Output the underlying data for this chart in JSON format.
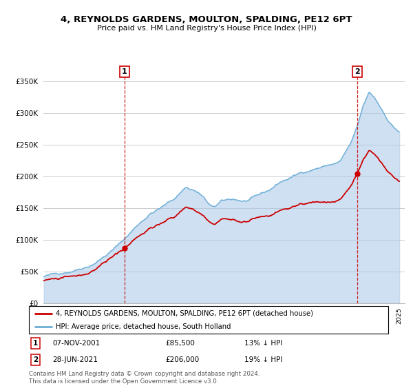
{
  "title": "4, REYNOLDS GARDENS, MOULTON, SPALDING, PE12 6PT",
  "subtitle": "Price paid vs. HM Land Registry's House Price Index (HPI)",
  "sale1_date": "07-NOV-2001",
  "sale1_price": 85500,
  "sale1_label": "13% ↓ HPI",
  "sale2_date": "28-JUN-2021",
  "sale2_price": 206000,
  "sale2_label": "19% ↓ HPI",
  "legend_line1": "4, REYNOLDS GARDENS, MOULTON, SPALDING, PE12 6PT (detached house)",
  "legend_line2": "HPI: Average price, detached house, South Holland",
  "footer": "Contains HM Land Registry data © Crown copyright and database right 2024.\nThis data is licensed under the Open Government Licence v3.0.",
  "hpi_color": "#a8c8e8",
  "hpi_line_color": "#6baed6",
  "price_color": "#cc0000",
  "vline_color": "#cc0000",
  "background_color": "#ffffff",
  "grid_color": "#cccccc",
  "ylim": [
    0,
    375000
  ],
  "yticks": [
    0,
    50000,
    100000,
    150000,
    200000,
    250000,
    300000,
    350000
  ],
  "hpi_anchors_t": [
    1995.0,
    1996.0,
    1997.0,
    1998.0,
    1999.0,
    2000.0,
    2001.0,
    2002.0,
    2003.0,
    2004.0,
    2005.0,
    2006.0,
    2007.0,
    2007.8,
    2008.5,
    2009.0,
    2009.5,
    2010.0,
    2011.0,
    2012.0,
    2013.0,
    2014.0,
    2015.0,
    2016.0,
    2017.0,
    2018.0,
    2019.0,
    2020.0,
    2021.0,
    2021.5,
    2022.0,
    2022.5,
    2023.0,
    2023.5,
    2024.0,
    2024.5,
    2025.0
  ],
  "hpi_anchors_v": [
    42000,
    45000,
    50000,
    57000,
    65000,
    78000,
    92000,
    110000,
    130000,
    148000,
    158000,
    170000,
    190000,
    185000,
    175000,
    160000,
    158000,
    165000,
    168000,
    165000,
    170000,
    178000,
    192000,
    200000,
    208000,
    215000,
    220000,
    225000,
    255000,
    278000,
    310000,
    330000,
    320000,
    305000,
    290000,
    278000,
    270000
  ],
  "sale1_t": 2001.856,
  "sale2_t": 2021.497,
  "noise_seed_hpi": 42,
  "noise_seed_price": 123
}
